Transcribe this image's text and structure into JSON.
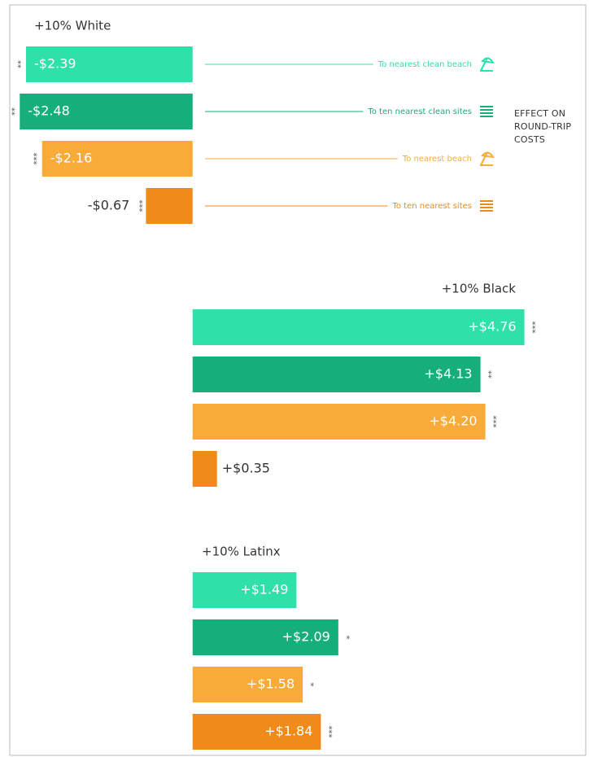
{
  "chart_data": {
    "type": "bar",
    "orientation": "horizontal",
    "title": "EFFECT ON ROUND-TRIP COSTS",
    "categories": [
      "+10% White",
      "+10% Black",
      "+10% Latinx"
    ],
    "xlim": [
      -2.6,
      5.5
    ],
    "series": [
      {
        "name": "To nearest clean beach",
        "color": "#2fe0a8",
        "values": [
          -2.39,
          4.76,
          1.49
        ],
        "value_labels": [
          "-$2.39",
          "+$4.76",
          "+$1.49"
        ],
        "significance": [
          "**",
          "***",
          null
        ]
      },
      {
        "name": "To ten nearest clean sites",
        "color": "#16ae7b",
        "values": [
          -2.48,
          4.13,
          2.09
        ],
        "value_labels": [
          "-$2.48",
          "+$4.13",
          "+$2.09"
        ],
        "significance": [
          "**",
          "**",
          "*"
        ]
      },
      {
        "name": "To nearest beach",
        "color": "#f8ab38",
        "values": [
          -2.16,
          4.2,
          1.58
        ],
        "value_labels": [
          "-$2.16",
          "+$4.20",
          "+$1.58"
        ],
        "significance": [
          "***",
          "***",
          "*"
        ]
      },
      {
        "name": "To ten nearest sites",
        "color": "#f08a18",
        "values": [
          -0.67,
          0.35,
          1.84
        ],
        "value_labels": [
          "-$0.67",
          "+$0.35",
          "+$1.84"
        ],
        "significance": [
          "***",
          null,
          "***"
        ]
      }
    ]
  }
}
